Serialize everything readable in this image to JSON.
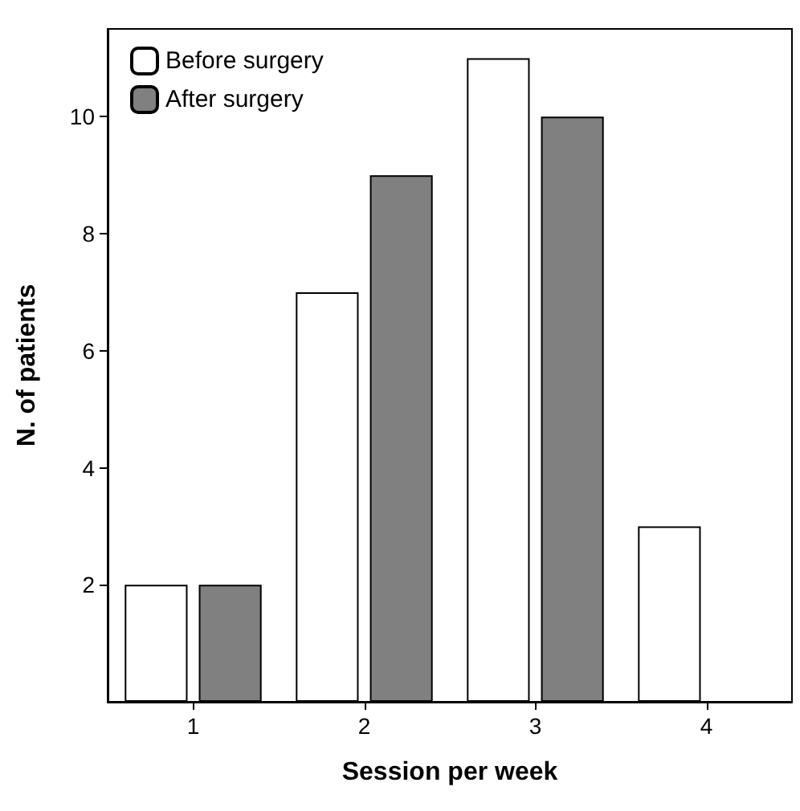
{
  "chart_data": {
    "type": "bar",
    "xlabel": "Session per week",
    "ylabel": "N. of patients",
    "categories": [
      "1",
      "2",
      "3",
      "4"
    ],
    "series": [
      {
        "name": "Before surgery",
        "color": "#ffffff",
        "values": [
          2,
          7,
          11,
          3
        ]
      },
      {
        "name": "After surgery",
        "color": "#808080",
        "values": [
          2,
          9,
          10,
          null
        ]
      }
    ],
    "ylim": [
      0,
      11.5
    ],
    "yticks": [
      2,
      4,
      6,
      8,
      10
    ],
    "grid": false,
    "legend": "top left"
  }
}
